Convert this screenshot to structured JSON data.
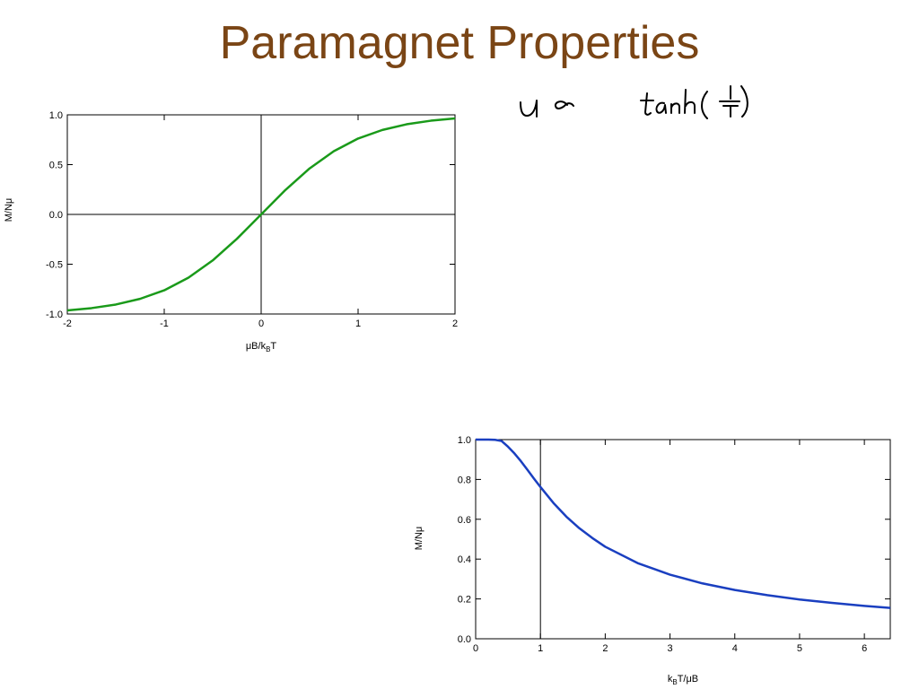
{
  "slide": {
    "title": "Paramagnet Properties"
  },
  "annotation": {
    "handwritten_formula": "u ∝ tanh(1/T)"
  },
  "colors": {
    "title": "#7a4515",
    "series_tanh": "#1a9a1a",
    "series_curie": "#1a3fc0",
    "axes": "#000000"
  },
  "chart_data": [
    {
      "type": "line",
      "xlabel_main": "μB/k",
      "xlabel_sub": "B",
      "xlabel_tail": "T",
      "ylabel": "M/Nμ",
      "xlim": [
        -2,
        2
      ],
      "ylim": [
        -1.0,
        1.0
      ],
      "x_ticks": [
        -2,
        -1,
        0,
        1,
        2
      ],
      "x_tick_labels": [
        "-2",
        "-1",
        "0",
        "1",
        "2"
      ],
      "y_ticks": [
        -1.0,
        -0.5,
        0.0,
        0.5,
        1.0
      ],
      "y_tick_labels": [
        "-1.0",
        "-0.5",
        "0.0",
        "0.5",
        "1.0"
      ],
      "reference_lines": {
        "x": 0,
        "y": 0
      },
      "grid": false,
      "series": [
        {
          "color": "#1a9a1a",
          "x": [
            -2.0,
            -1.75,
            -1.5,
            -1.25,
            -1.0,
            -0.75,
            -0.5,
            -0.25,
            0.0,
            0.25,
            0.5,
            0.75,
            1.0,
            1.25,
            1.5,
            1.75,
            2.0
          ],
          "y": [
            -0.964,
            -0.941,
            -0.905,
            -0.848,
            -0.762,
            -0.635,
            -0.462,
            -0.245,
            0.0,
            0.245,
            0.462,
            0.635,
            0.762,
            0.848,
            0.905,
            0.941,
            0.964
          ]
        }
      ]
    },
    {
      "type": "line",
      "xlabel_main": "k",
      "xlabel_sub": "B",
      "xlabel_tail": "T/μB",
      "ylabel": "M/Nμ",
      "xlim": [
        0,
        6.4
      ],
      "ylim": [
        0.0,
        1.0
      ],
      "x_ticks": [
        0,
        1,
        2,
        3,
        4,
        5,
        6
      ],
      "x_tick_labels": [
        "0",
        "1",
        "2",
        "3",
        "4",
        "5",
        "6"
      ],
      "y_ticks": [
        0.0,
        0.2,
        0.4,
        0.6,
        0.8,
        1.0
      ],
      "y_tick_labels": [
        "0.0",
        "0.2",
        "0.4",
        "0.6",
        "0.8",
        "1.0"
      ],
      "reference_lines": {
        "x": 1
      },
      "grid": false,
      "series": [
        {
          "color": "#1a3fc0",
          "x": [
            0.0,
            0.2,
            0.3,
            0.4,
            0.5,
            0.6,
            0.7,
            0.8,
            0.9,
            1.0,
            1.2,
            1.4,
            1.6,
            1.8,
            2.0,
            2.5,
            3.0,
            3.5,
            4.0,
            4.5,
            5.0,
            5.5,
            6.0,
            6.4
          ],
          "y": [
            1.0,
            1.0,
            0.999,
            0.993,
            0.964,
            0.93,
            0.891,
            0.848,
            0.804,
            0.762,
            0.682,
            0.613,
            0.555,
            0.506,
            0.462,
            0.38,
            0.322,
            0.278,
            0.245,
            0.219,
            0.197,
            0.18,
            0.165,
            0.155
          ]
        }
      ]
    }
  ]
}
